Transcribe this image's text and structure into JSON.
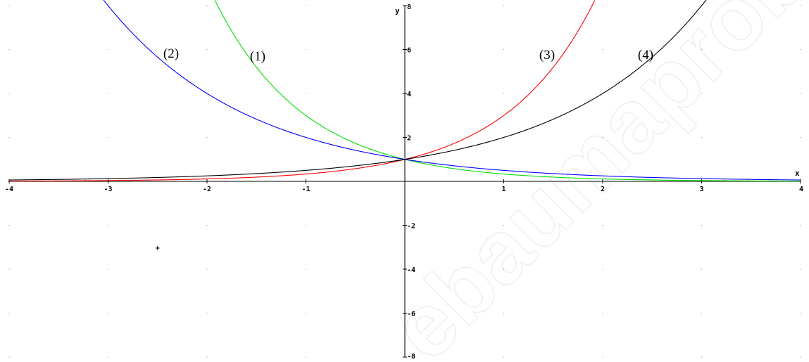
{
  "watermark": "ebaumaprobar.es",
  "chart_data": {
    "type": "line",
    "title": "",
    "xlabel": "x",
    "ylabel": "y",
    "xlim": [
      -4,
      4
    ],
    "ylim": [
      -8,
      8
    ],
    "grid": "dots",
    "x_ticks": [
      -4,
      -3,
      -2,
      -1,
      1,
      2,
      3,
      4
    ],
    "y_ticks": [
      -8,
      -6,
      -4,
      -2,
      2,
      4,
      6,
      8
    ],
    "series": [
      {
        "name": "(1)",
        "function": "3^(-x)",
        "color": "#00e000"
      },
      {
        "name": "(2)",
        "function": "2^(-x)",
        "color": "#0000ff"
      },
      {
        "name": "(3)",
        "function": "3^x",
        "color": "#ff0000"
      },
      {
        "name": "(4)",
        "function": "2^x",
        "color": "#000000"
      }
    ],
    "annotations": [
      {
        "text": "+",
        "x": -2.5,
        "y": -3
      }
    ]
  }
}
